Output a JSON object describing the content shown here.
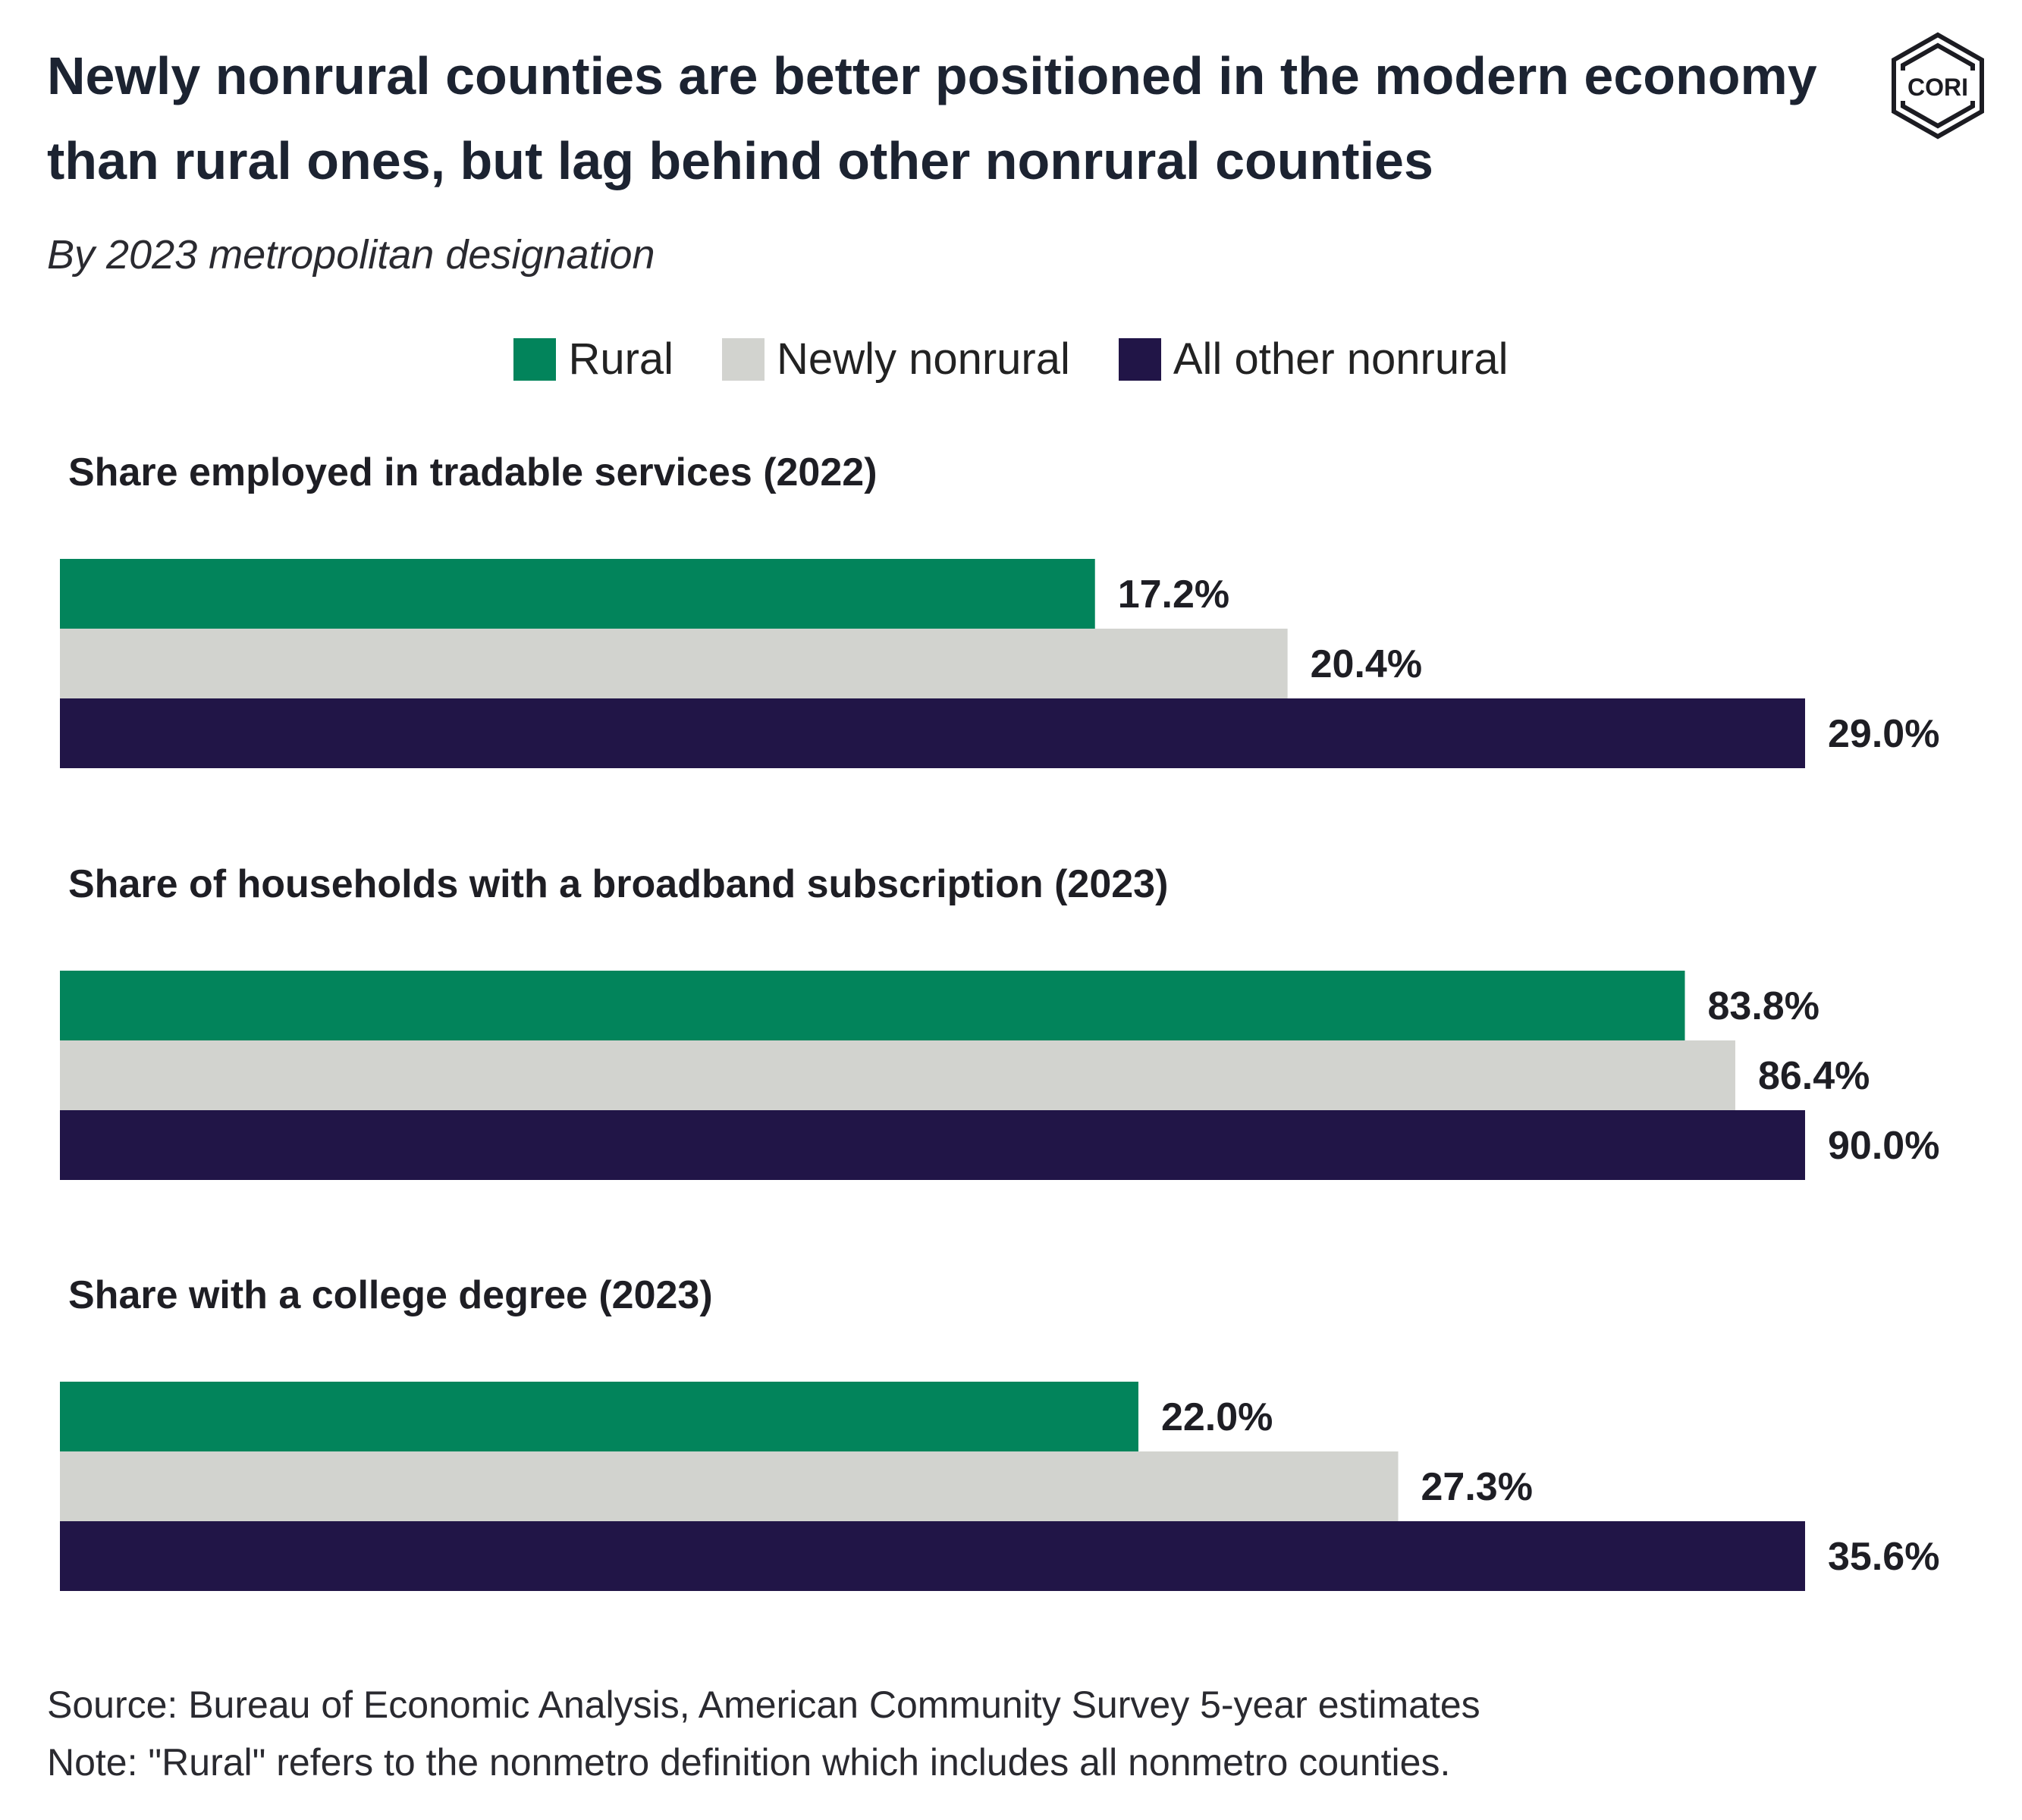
{
  "title": "Newly nonrural counties are better positioned in the modern economy than rural ones, but lag behind other nonrural counties",
  "subtitle": "By 2023 metropolitan designation",
  "logo_text": "CORI",
  "legend": [
    {
      "name": "Rural",
      "color": "#02845b"
    },
    {
      "name": "Newly nonrural",
      "color": "#d2d3cf"
    },
    {
      "name": "All other nonrural",
      "color": "#211547"
    }
  ],
  "chart_data": {
    "type": "bar",
    "orientation": "horizontal",
    "series_names": [
      "Rural",
      "Newly nonrural",
      "All other nonrural"
    ],
    "panels": [
      {
        "title": "Share employed in tradable services (2022)",
        "values": [
          17.2,
          20.4,
          29.0
        ],
        "labels": [
          "17.2%",
          "20.4%",
          "29.0%"
        ]
      },
      {
        "title": "Share of households with a broadband subscription (2023)",
        "values": [
          83.8,
          86.4,
          90.0
        ],
        "labels": [
          "83.8%",
          "86.4%",
          "90.0%"
        ]
      },
      {
        "title": "Share with a college degree (2023)",
        "values": [
          22.0,
          27.3,
          35.6
        ],
        "labels": [
          "22.0%",
          "27.3%",
          "35.6%"
        ]
      }
    ],
    "scale": "each panel scaled to its own maximum"
  },
  "footer": {
    "source": "Source: Bureau of Economic Analysis, American Community Survey 5-year estimates",
    "note": "Note: \"Rural\" refers to the nonmetro definition which includes all nonmetro counties."
  }
}
